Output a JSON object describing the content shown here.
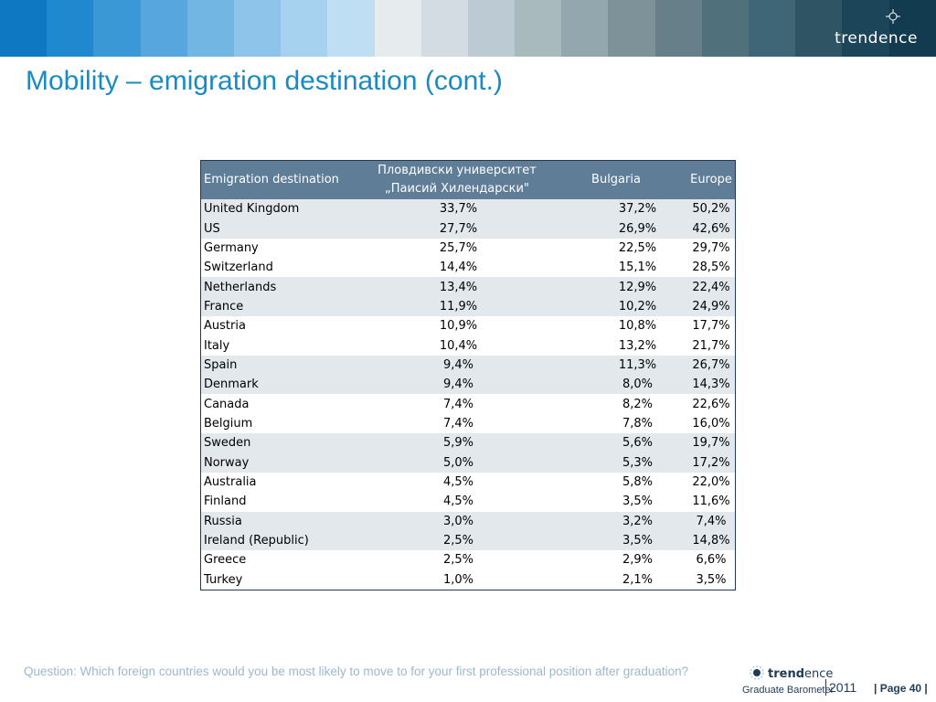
{
  "header": {
    "band_colors": [
      "#0e78c2",
      "#1f88cf",
      "#3a98d7",
      "#57a7de",
      "#72b6e4",
      "#8ec4ea",
      "#a7d2ef",
      "#bedff3",
      "#e6ebee",
      "#d3dce2",
      "#bccbd3",
      "#a9babf",
      "#93a7af",
      "#7d9299",
      "#667f88",
      "#50707c",
      "#3f6676",
      "#2f5564",
      "#1c4559",
      "#123b50"
    ],
    "logo_text": "trendence"
  },
  "page_title": "Mobility – emigration destination (cont.)",
  "table": {
    "headers": {
      "country": "Emigration destination",
      "plovdiv_line1": "Пловдивски университет",
      "plovdiv_line2": "„Паисий Хилендарски\"",
      "bulgaria": "Bulgaria",
      "europe": "Europe"
    },
    "rows": [
      {
        "country": "United Kingdom",
        "plovdiv": "33,7%",
        "bulgaria": "37,2%",
        "europe": "50,2%"
      },
      {
        "country": "US",
        "plovdiv": "27,7%",
        "bulgaria": "26,9%",
        "europe": "42,6%"
      },
      {
        "country": "Germany",
        "plovdiv": "25,7%",
        "bulgaria": "22,5%",
        "europe": "29,7%"
      },
      {
        "country": "Switzerland",
        "plovdiv": "14,4%",
        "bulgaria": "15,1%",
        "europe": "28,5%"
      },
      {
        "country": "Netherlands",
        "plovdiv": "13,4%",
        "bulgaria": "12,9%",
        "europe": "22,4%"
      },
      {
        "country": "France",
        "plovdiv": "11,9%",
        "bulgaria": "10,2%",
        "europe": "24,9%"
      },
      {
        "country": "Austria",
        "plovdiv": "10,9%",
        "bulgaria": "10,8%",
        "europe": "17,7%"
      },
      {
        "country": "Italy",
        "plovdiv": "10,4%",
        "bulgaria": "13,2%",
        "europe": "21,7%"
      },
      {
        "country": "Spain",
        "plovdiv": "9,4%",
        "bulgaria": "11,3%",
        "europe": "26,7%"
      },
      {
        "country": "Denmark",
        "plovdiv": "9,4%",
        "bulgaria": "8,0%",
        "europe": "14,3%"
      },
      {
        "country": "Canada",
        "plovdiv": "7,4%",
        "bulgaria": "8,2%",
        "europe": "22,6%"
      },
      {
        "country": "Belgium",
        "plovdiv": "7,4%",
        "bulgaria": "7,8%",
        "europe": "16,0%"
      },
      {
        "country": "Sweden",
        "plovdiv": "5,9%",
        "bulgaria": "5,6%",
        "europe": "19,7%"
      },
      {
        "country": "Norway",
        "plovdiv": "5,0%",
        "bulgaria": "5,3%",
        "europe": "17,2%"
      },
      {
        "country": "Australia",
        "plovdiv": "4,5%",
        "bulgaria": "5,8%",
        "europe": "22,0%"
      },
      {
        "country": "Finland",
        "plovdiv": "4,5%",
        "bulgaria": "3,5%",
        "europe": "11,6%"
      },
      {
        "country": "Russia",
        "plovdiv": "3,0%",
        "bulgaria": "3,2%",
        "europe": "7,4%"
      },
      {
        "country": "Ireland (Republic)",
        "plovdiv": "2,5%",
        "bulgaria": "3,5%",
        "europe": "14,8%"
      },
      {
        "country": "Greece",
        "plovdiv": "2,5%",
        "bulgaria": "2,9%",
        "europe": "6,6%"
      },
      {
        "country": "Turkey",
        "plovdiv": "1,0%",
        "bulgaria": "2,1%",
        "europe": "3,5%"
      }
    ]
  },
  "footer": {
    "question": "Question: Which foreign countries would you be most likely to move to for your first professional position after graduation?",
    "logo_bold": "trend",
    "logo_rest": "ence",
    "logo_subtitle": "Graduate Barometer",
    "year": "2011",
    "page_number": "| Page 40 |"
  }
}
